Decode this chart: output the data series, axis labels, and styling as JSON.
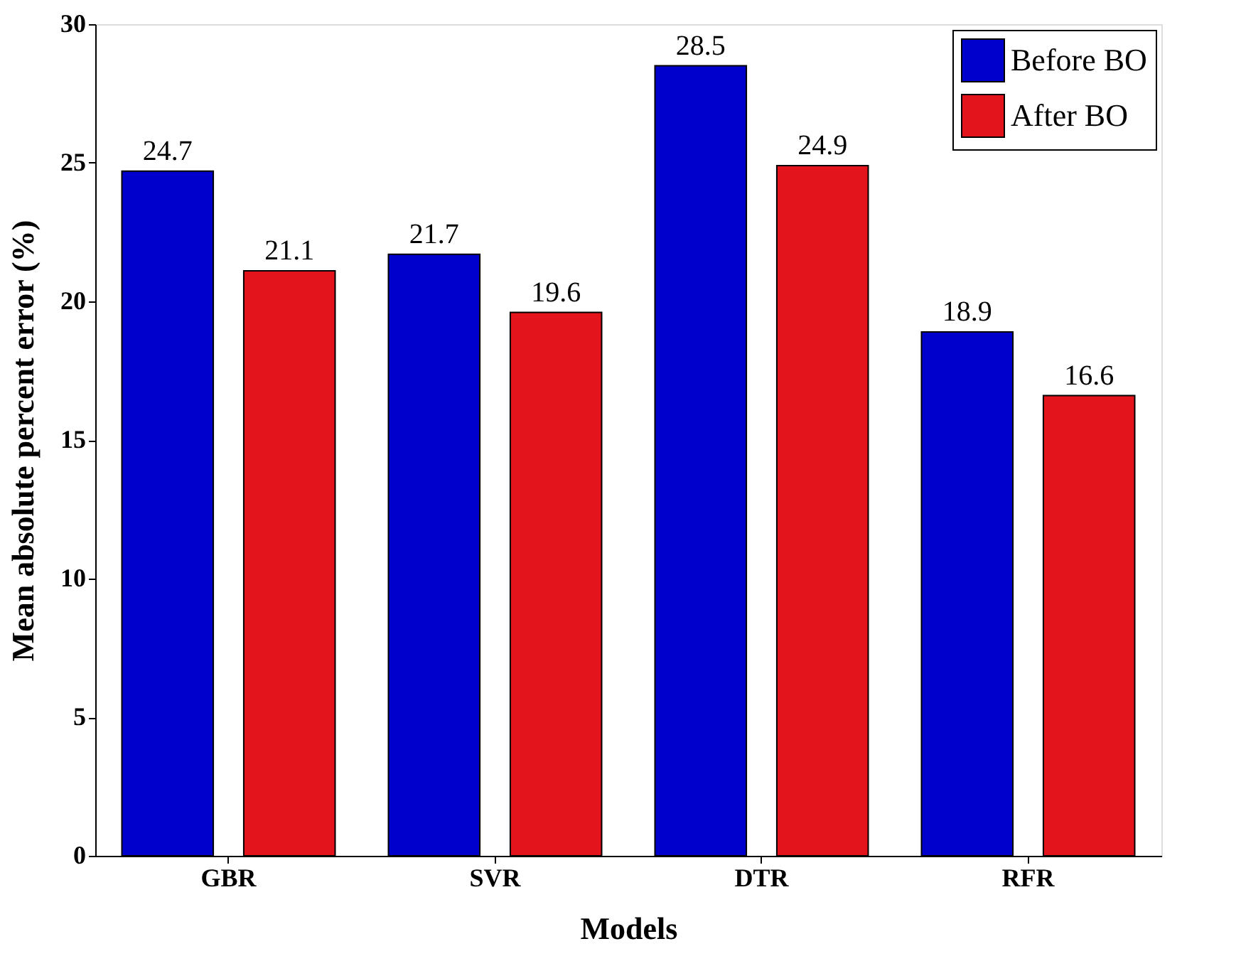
{
  "chart_data": {
    "type": "bar",
    "xlabel": "Models",
    "ylabel": "Mean absolute percent error (%)",
    "categories": [
      "GBR",
      "SVR",
      "DTR",
      "RFR"
    ],
    "series": [
      {
        "name": "Before BO",
        "color": "#0000cc",
        "values": [
          24.7,
          21.7,
          28.5,
          18.9
        ]
      },
      {
        "name": "After BO",
        "color": "#e3141b",
        "values": [
          21.1,
          19.6,
          24.9,
          16.6
        ]
      }
    ],
    "ylim": [
      0,
      30
    ],
    "yticks": [
      0,
      5,
      10,
      15,
      20,
      25,
      30
    ],
    "data_labels": true,
    "legend": "top right",
    "grid": false
  }
}
